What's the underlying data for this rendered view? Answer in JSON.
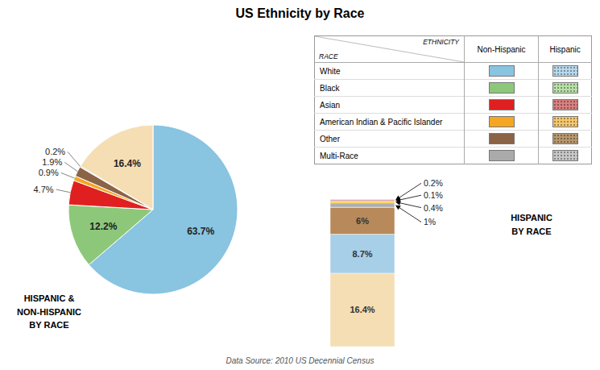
{
  "chart_data": [
    {
      "type": "pie",
      "title": "US Ethnicity by Race",
      "subtitle": "Data Source: 2010 US Decennial Census",
      "annotation": "HISPANIC &\nNON-HISPANIC\nBY RACE",
      "values": [
        63.7,
        12.2,
        4.7,
        0.9,
        1.9,
        0.2,
        16.4
      ],
      "value_labels": [
        "63.7%",
        "12.2%",
        "4.7%",
        "0.9%",
        "1.9%",
        "0.2%",
        "16.4%"
      ],
      "data_labels": true,
      "colors": [
        "#89c4e1",
        "#8dc87a",
        "#e02020",
        "#f5a623",
        "#8B6347",
        "#aaaaaa",
        "#f5deb3"
      ]
    },
    {
      "type": "table",
      "row_header": "RACE",
      "column_header": "ETHNICITY",
      "categories": [
        "White",
        "Black",
        "Asian",
        "American Indian & Pacific Islander",
        "Other",
        "Multi-Race"
      ],
      "series": [
        {
          "name": "Non-Hispanic",
          "colors": [
            "#89c4e1",
            "#8dc87a",
            "#e02020",
            "#f5a623",
            "#8B6347",
            "#aaaaaa"
          ]
        },
        {
          "name": "Hispanic",
          "colors": [
            "#b8d8ed",
            "#b8e0a8",
            "#d88080",
            "#f5c870",
            "#b89870",
            "#c8c8c8"
          ]
        }
      ]
    },
    {
      "type": "bar",
      "title": "HISPANIC\nBY RACE",
      "stacked": true,
      "values": [
        16.4,
        8.7,
        6.0,
        1.0,
        0.4,
        0.1,
        0.2
      ],
      "value_labels": [
        "16.4%",
        "8.7%",
        "6%",
        "1%",
        "0.4%",
        "0.1%",
        "0.2%"
      ],
      "data_labels": true,
      "colors": [
        "#f5deb3",
        "#a8cfe8",
        "#b8895a",
        "#b0b0b0",
        "#f5c518",
        "#74c476",
        "#d05050"
      ],
      "ylim": [
        0,
        33.3
      ],
      "tick_labels": false
    }
  ]
}
